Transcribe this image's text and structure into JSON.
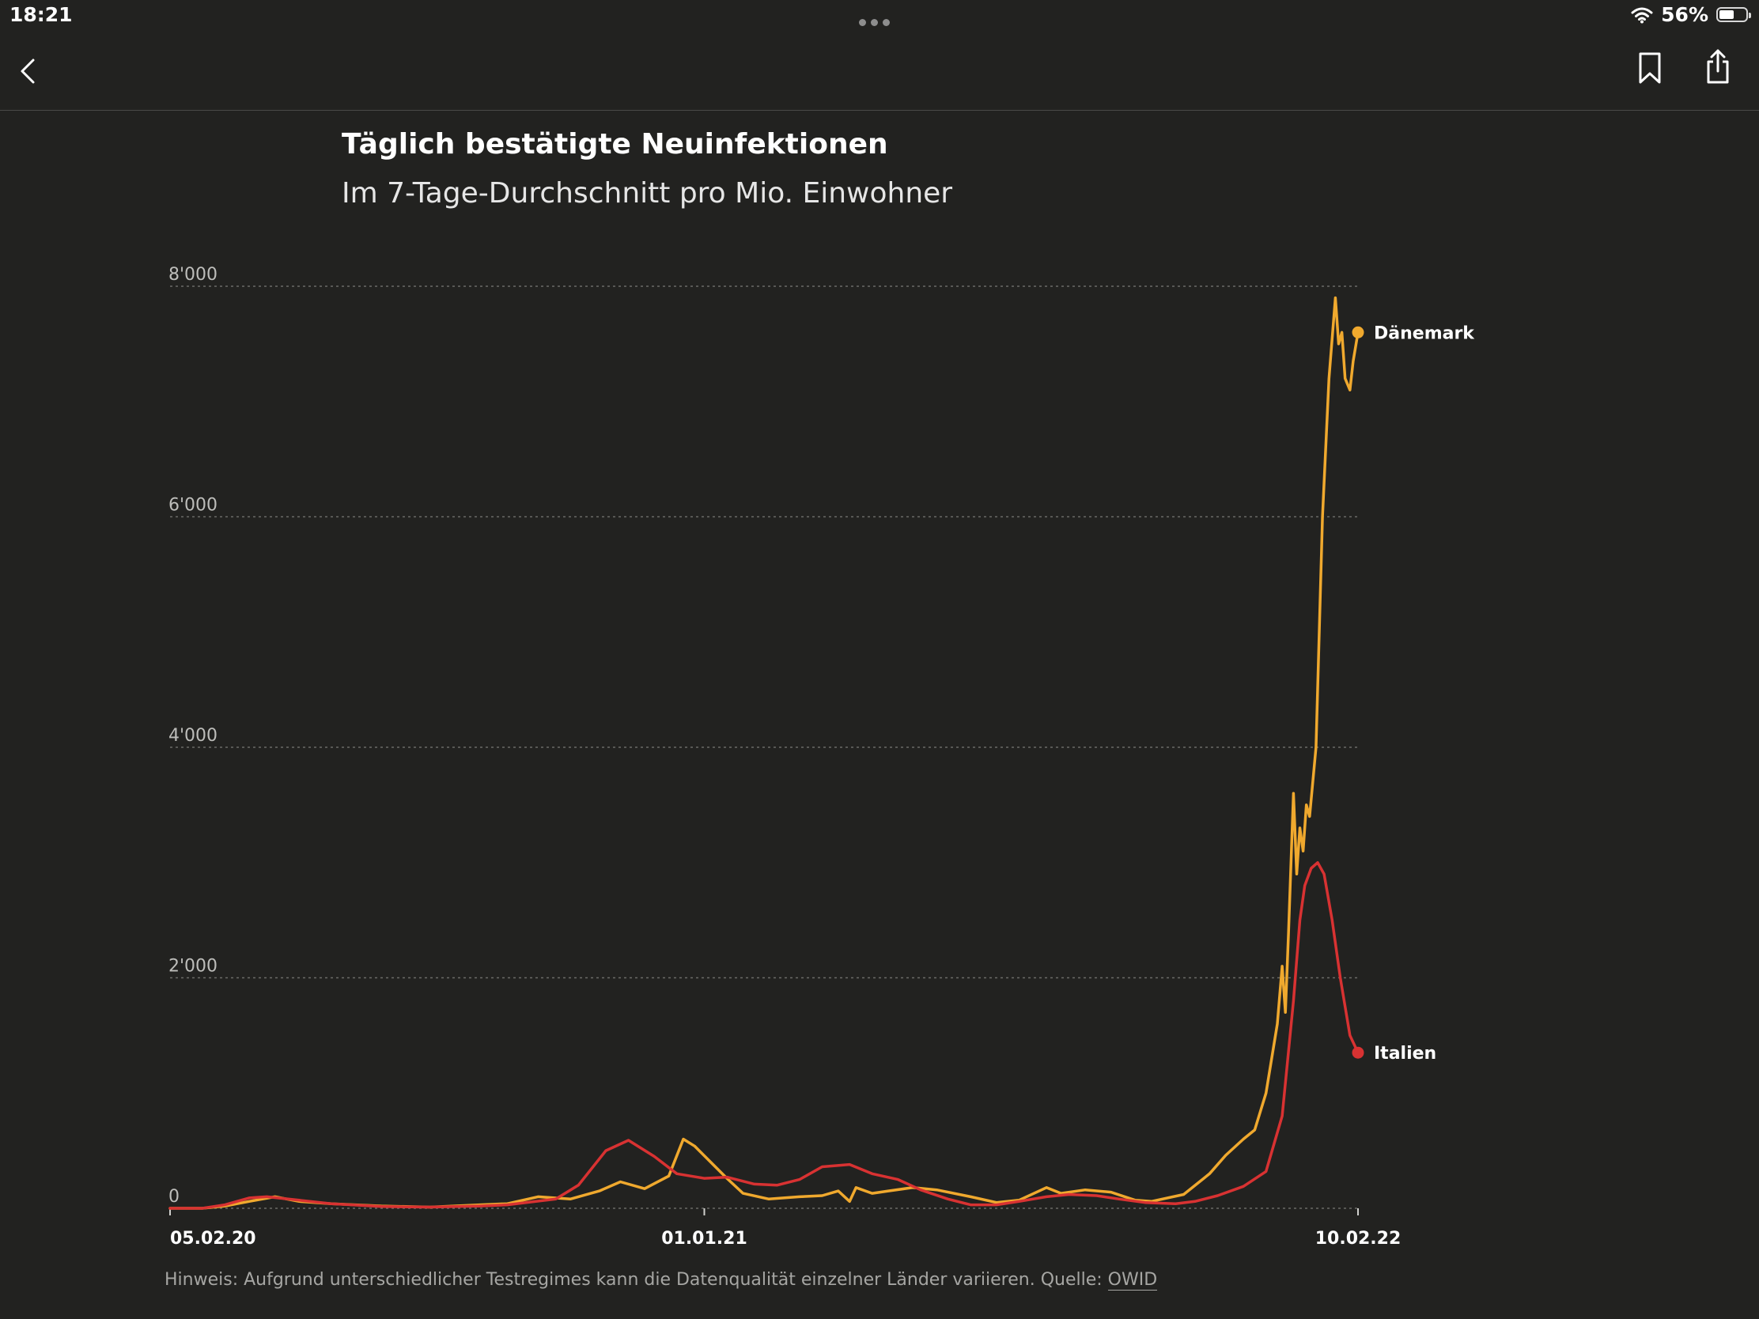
{
  "status_bar": {
    "time": "18:21",
    "battery": "56%",
    "battery_level": 0.56
  },
  "nav": {
    "back_icon": "chevron-left-icon",
    "bookmark_icon": "bookmark-icon",
    "share_icon": "share-icon"
  },
  "chart_data": {
    "type": "line",
    "title": "Täglich bestätigte Neuinfektionen",
    "subtitle": "Im 7-Tage-Durchschnitt pro Mio. Einwohner",
    "xlim": [
      "05.02.20",
      "10.02.22"
    ],
    "x_ticks": [
      "05.02.20",
      "01.01.21",
      "10.02.22"
    ],
    "ylim": [
      0,
      8000
    ],
    "y_ticks": [
      0,
      2000,
      4000,
      6000,
      8000
    ],
    "y_tick_labels": [
      "0",
      "2'000",
      "4'000",
      "6'000",
      "8'000"
    ],
    "grid": "horizontal dotted",
    "series": [
      {
        "name": "Dänemark",
        "color": "#f0a92e",
        "points": [
          [
            "05.02.20",
            0
          ],
          [
            "25.02.20",
            0
          ],
          [
            "10.03.20",
            20
          ],
          [
            "25.03.20",
            60
          ],
          [
            "10.04.20",
            100
          ],
          [
            "25.04.20",
            60
          ],
          [
            "15.05.20",
            40
          ],
          [
            "15.06.20",
            20
          ],
          [
            "15.07.20",
            10
          ],
          [
            "15.08.20",
            30
          ],
          [
            "01.09.20",
            40
          ],
          [
            "20.09.20",
            100
          ],
          [
            "10.10.20",
            80
          ],
          [
            "28.10.20",
            150
          ],
          [
            "10.11.20",
            230
          ],
          [
            "25.11.20",
            170
          ],
          [
            "10.12.20",
            280
          ],
          [
            "19.12.20",
            600
          ],
          [
            "26.12.20",
            540
          ],
          [
            "05.01.21",
            400
          ],
          [
            "15.01.21",
            260
          ],
          [
            "25.01.21",
            130
          ],
          [
            "10.02.21",
            80
          ],
          [
            "01.03.21",
            100
          ],
          [
            "15.03.21",
            110
          ],
          [
            "25.03.21",
            150
          ],
          [
            "01.04.21",
            60
          ],
          [
            "05.04.21",
            180
          ],
          [
            "15.04.21",
            130
          ],
          [
            "25.04.21",
            150
          ],
          [
            "10.05.21",
            180
          ],
          [
            "25.05.21",
            160
          ],
          [
            "15.06.21",
            100
          ],
          [
            "01.07.21",
            50
          ],
          [
            "15.07.21",
            70
          ],
          [
            "01.08.21",
            180
          ],
          [
            "10.08.21",
            130
          ],
          [
            "25.08.21",
            160
          ],
          [
            "10.09.21",
            140
          ],
          [
            "25.09.21",
            70
          ],
          [
            "05.10.21",
            60
          ],
          [
            "25.10.21",
            120
          ],
          [
            "10.11.21",
            300
          ],
          [
            "20.11.21",
            460
          ],
          [
            "01.12.21",
            600
          ],
          [
            "08.12.21",
            680
          ],
          [
            "15.12.21",
            1000
          ],
          [
            "22.12.21",
            1600
          ],
          [
            "25.12.21",
            2100
          ],
          [
            "27.12.21",
            1700
          ],
          [
            "29.12.21",
            2400
          ],
          [
            "01.01.22",
            3600
          ],
          [
            "03.01.22",
            2900
          ],
          [
            "05.01.22",
            3300
          ],
          [
            "07.01.22",
            3100
          ],
          [
            "09.01.22",
            3500
          ],
          [
            "11.01.22",
            3400
          ],
          [
            "15.01.22",
            4000
          ],
          [
            "19.01.22",
            6000
          ],
          [
            "23.01.22",
            7200
          ],
          [
            "27.01.22",
            7900
          ],
          [
            "29.01.22",
            7500
          ],
          [
            "31.01.22",
            7600
          ],
          [
            "02.02.22",
            7200
          ],
          [
            "05.02.22",
            7100
          ],
          [
            "07.02.22",
            7350
          ],
          [
            "10.02.22",
            7600
          ]
        ]
      },
      {
        "name": "Italien",
        "color": "#d83232",
        "points": [
          [
            "05.02.20",
            0
          ],
          [
            "25.02.20",
            0
          ],
          [
            "10.03.20",
            30
          ],
          [
            "25.03.20",
            90
          ],
          [
            "05.04.20",
            100
          ],
          [
            "25.04.20",
            70
          ],
          [
            "15.05.20",
            40
          ],
          [
            "15.06.20",
            15
          ],
          [
            "15.07.20",
            10
          ],
          [
            "15.08.20",
            20
          ],
          [
            "01.09.20",
            30
          ],
          [
            "01.10.20",
            80
          ],
          [
            "15.10.20",
            200
          ],
          [
            "01.11.20",
            500
          ],
          [
            "15.11.20",
            590
          ],
          [
            "01.12.20",
            450
          ],
          [
            "15.12.20",
            300
          ],
          [
            "01.01.21",
            260
          ],
          [
            "15.01.21",
            270
          ],
          [
            "01.02.21",
            210
          ],
          [
            "15.02.21",
            200
          ],
          [
            "01.03.21",
            250
          ],
          [
            "15.03.21",
            360
          ],
          [
            "01.04.21",
            380
          ],
          [
            "15.04.21",
            300
          ],
          [
            "01.05.21",
            250
          ],
          [
            "15.05.21",
            160
          ],
          [
            "01.06.21",
            80
          ],
          [
            "15.06.21",
            30
          ],
          [
            "01.07.21",
            30
          ],
          [
            "15.07.21",
            60
          ],
          [
            "01.08.21",
            100
          ],
          [
            "15.08.21",
            120
          ],
          [
            "01.09.21",
            110
          ],
          [
            "15.09.21",
            80
          ],
          [
            "01.10.21",
            50
          ],
          [
            "20.10.21",
            40
          ],
          [
            "01.11.21",
            60
          ],
          [
            "15.11.21",
            110
          ],
          [
            "01.12.21",
            190
          ],
          [
            "15.12.21",
            320
          ],
          [
            "25.12.21",
            800
          ],
          [
            "01.01.22",
            1800
          ],
          [
            "05.01.22",
            2500
          ],
          [
            "08.01.22",
            2800
          ],
          [
            "12.01.22",
            2950
          ],
          [
            "16.01.22",
            3000
          ],
          [
            "20.01.22",
            2900
          ],
          [
            "25.01.22",
            2500
          ],
          [
            "30.01.22",
            2000
          ],
          [
            "05.02.22",
            1500
          ],
          [
            "10.02.22",
            1350
          ]
        ]
      }
    ],
    "footnote": "Hinweis: Aufgrund unterschiedlicher Testregimes kann die Datenqualität einzelner Länder variieren. Quelle:",
    "source": "OWID"
  }
}
